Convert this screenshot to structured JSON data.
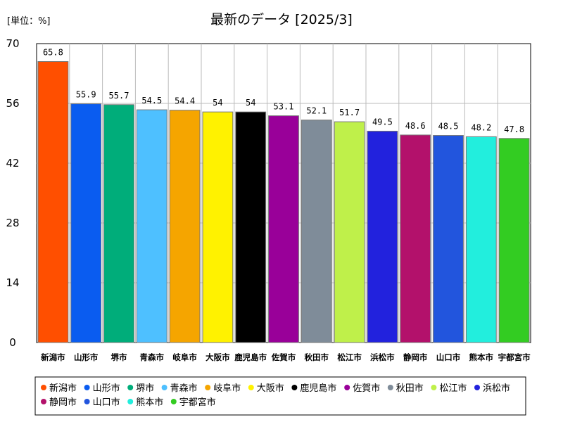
{
  "header": {
    "unit": "[単位：%]",
    "title": "最新のデータ [2025/3]"
  },
  "chart_data": {
    "type": "bar",
    "categories": [
      "新潟市",
      "山形市",
      "堺市",
      "青森市",
      "岐阜市",
      "大阪市",
      "鹿児島市",
      "佐賀市",
      "秋田市",
      "松江市",
      "浜松市",
      "静岡市",
      "山口市",
      "熊本市",
      "宇都宮市"
    ],
    "values": [
      65.8,
      55.9,
      55.7,
      54.5,
      54.4,
      54,
      54,
      53.1,
      52.1,
      51.7,
      49.5,
      48.6,
      48.5,
      48.2,
      47.8
    ],
    "value_labels": [
      "65.8",
      "55.9",
      "55.7",
      "54.5",
      "54.4",
      "54",
      "54",
      "53.1",
      "52.1",
      "51.7",
      "49.5",
      "48.6",
      "48.5",
      "48.2",
      "47.8"
    ],
    "colors": [
      "#ff4f00",
      "#0a5cf0",
      "#00ad7a",
      "#4ec0ff",
      "#f5a500",
      "#fff200",
      "#000000",
      "#990099",
      "#7f8c99",
      "#bff04a",
      "#2222dd",
      "#b3116b",
      "#2255dd",
      "#22eedd",
      "#33cc22"
    ],
    "ylim": [
      0,
      70
    ],
    "yticks": [
      "0",
      "14",
      "28",
      "42",
      "56",
      "70"
    ],
    "grid": true,
    "legend_position": "bottom"
  }
}
